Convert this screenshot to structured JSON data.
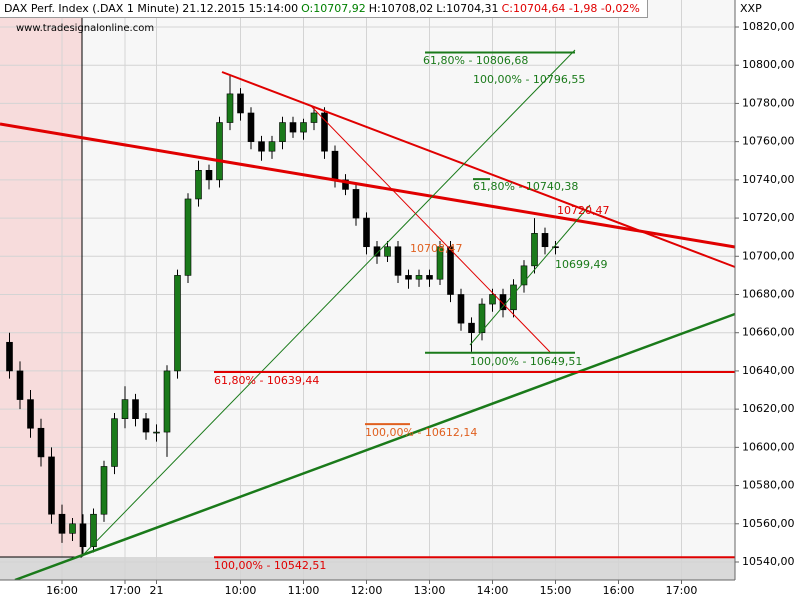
{
  "chart_data": {
    "type": "candlestick",
    "header": [
      {
        "text": "DAX Perf. Index (.DAX  1 Minute)",
        "color": "#000000"
      },
      {
        "text": "21.12.2015 15:14:00",
        "color": "#000000"
      },
      {
        "text": "O:10707,92",
        "color": "#008000"
      },
      {
        "text": "H:10708,02",
        "color": "#000000"
      },
      {
        "text": "L:10704,31",
        "color": "#000000"
      },
      {
        "text": "C:10704,64 -1,98 -0,02%",
        "color": "#e00000"
      }
    ],
    "source": "www.tradesignalonline.com",
    "y_axis_label": "XXP",
    "up_color": "#1a7a1a",
    "down_color": "#000000",
    "categories": [
      null,
      null,
      null,
      null,
      null,
      "16:00",
      null,
      null,
      null,
      null,
      null,
      "17:00",
      null,
      null,
      "21",
      null,
      null,
      null,
      null,
      null,
      null,
      null,
      "10:00",
      null,
      null,
      null,
      null,
      null,
      "11:00",
      null,
      null,
      null,
      null,
      null,
      "12:00",
      null,
      null,
      null,
      null,
      null,
      "13:00",
      null,
      null,
      null,
      null,
      null,
      "14:00",
      null,
      null,
      null,
      null,
      null,
      "15:00",
      null,
      null,
      null,
      null,
      null,
      "16:00",
      null,
      null,
      null,
      null,
      null,
      "17:00",
      null,
      null,
      null,
      null
    ],
    "open": [
      10655,
      10640,
      10625,
      10610,
      10595,
      10565,
      10555,
      10560,
      10548,
      10565,
      10590,
      10615,
      10625,
      10615,
      10608,
      10608,
      10640,
      10690,
      10730,
      10745,
      10740,
      10770,
      10785,
      10775,
      10760,
      10755,
      10760,
      10770,
      10765,
      10770,
      10775,
      10755,
      10740,
      10735,
      10720,
      10705,
      10700,
      10705,
      10690,
      10688,
      10690,
      10688,
      10705,
      10680,
      10665,
      10660,
      10675,
      10680,
      10672,
      10685,
      10695,
      10712,
      10705,
      null,
      null,
      null,
      null,
      null,
      null,
      null,
      null,
      null,
      null,
      null,
      null,
      null,
      null,
      null,
      null
    ],
    "high": [
      10660,
      10645,
      10630,
      10615,
      10600,
      10570,
      10563,
      10565,
      10568,
      10593,
      10618,
      10632,
      10628,
      10618,
      10612,
      10643,
      10693,
      10733,
      10750,
      10748,
      10773,
      10795,
      10788,
      10778,
      10763,
      10763,
      10773,
      10773,
      10772,
      10778,
      10778,
      10758,
      10743,
      10738,
      10723,
      10708,
      10708,
      10708,
      10693,
      10693,
      10693,
      10708,
      10708,
      10683,
      10668,
      10678,
      10683,
      10683,
      10688,
      10698,
      10720,
      10715,
      10708,
      null,
      null,
      null,
      null,
      null,
      null,
      null,
      null,
      null,
      null,
      null,
      null,
      null,
      null,
      null,
      null
    ],
    "low": [
      10636,
      10620,
      10605,
      10590,
      10560,
      10550,
      10551,
      10543,
      10545,
      10561,
      10586,
      10610,
      10611,
      10604,
      10603,
      10595,
      10636,
      10686,
      10726,
      10735,
      10736,
      10766,
      10771,
      10756,
      10750,
      10751,
      10756,
      10762,
      10761,
      10766,
      10751,
      10736,
      10732,
      10716,
      10701,
      10696,
      10697,
      10686,
      10683,
      10684,
      10684,
      10685,
      10676,
      10661,
      10650,
      10656,
      10671,
      10668,
      10668,
      10681,
      10691,
      10701,
      10701,
      null,
      null,
      null,
      null,
      null,
      null,
      null,
      null,
      null,
      null,
      null,
      null,
      null,
      null,
      null,
      null
    ],
    "close": [
      10640,
      10625,
      10610,
      10595,
      10565,
      10555,
      10560,
      10548,
      10565,
      10590,
      10615,
      10625,
      10615,
      10608,
      10608,
      10640,
      10690,
      10730,
      10745,
      10740,
      10770,
      10785,
      10775,
      10760,
      10755,
      10760,
      10770,
      10765,
      10770,
      10775,
      10755,
      10740,
      10735,
      10720,
      10705,
      10700,
      10705,
      10690,
      10688,
      10690,
      10688,
      10705,
      10680,
      10665,
      10660,
      10675,
      10680,
      10672,
      10685,
      10695,
      10712,
      10705,
      10704.64,
      null,
      null,
      null,
      null,
      null,
      null,
      null,
      null,
      null,
      null,
      null,
      null,
      null,
      null,
      null,
      null
    ],
    "ylim": [
      10530,
      10830
    ],
    "yticks": [
      {
        "value": 10540,
        "label": "10540,00"
      },
      {
        "value": 10560,
        "label": "10560,00"
      },
      {
        "value": 10580,
        "label": "10580,00"
      },
      {
        "value": 10600,
        "label": "10600,00"
      },
      {
        "value": 10620,
        "label": "10620,00"
      },
      {
        "value": 10640,
        "label": "10640,00"
      },
      {
        "value": 10660,
        "label": "10660,00"
      },
      {
        "value": 10680,
        "label": "10680,00"
      },
      {
        "value": 10700,
        "label": "10700,00"
      },
      {
        "value": 10720,
        "label": "10720,00"
      },
      {
        "value": 10740,
        "label": "10740,00"
      },
      {
        "value": 10760,
        "label": "10760,00"
      },
      {
        "value": 10780,
        "label": "10780,00"
      },
      {
        "value": 10800,
        "label": "10800,00"
      },
      {
        "value": 10820,
        "label": "10820,00"
      }
    ],
    "grid": true,
    "levels": [
      {
        "label": "61,80% - 10806,68",
        "value": 10806.68,
        "color": "#1a7a1a"
      },
      {
        "label": "61,80% - 10740,38",
        "value": 10740.38,
        "color": "#1a7a1a"
      },
      {
        "label": "100,00% - 10649,51",
        "value": 10649.51,
        "color": "#1a7a1a"
      },
      {
        "label": "61,80% - 10639,44",
        "value": 10639.44,
        "color": "#e00000"
      },
      {
        "label": "100,00% - 10612,14",
        "value": 10612.14,
        "color": "#e06020"
      },
      {
        "label": "100,00% - 10542,51",
        "value": 10542.51,
        "color": "#e00000"
      }
    ],
    "annotations": [
      {
        "text": "100,00% - 10796,55",
        "color": "#1a7a1a"
      },
      {
        "text": "10720,47",
        "color": "#e00000"
      },
      {
        "text": "10708,47",
        "color": "#e06020"
      },
      {
        "text": "10699,49",
        "color": "#1a7a1a"
      }
    ]
  }
}
